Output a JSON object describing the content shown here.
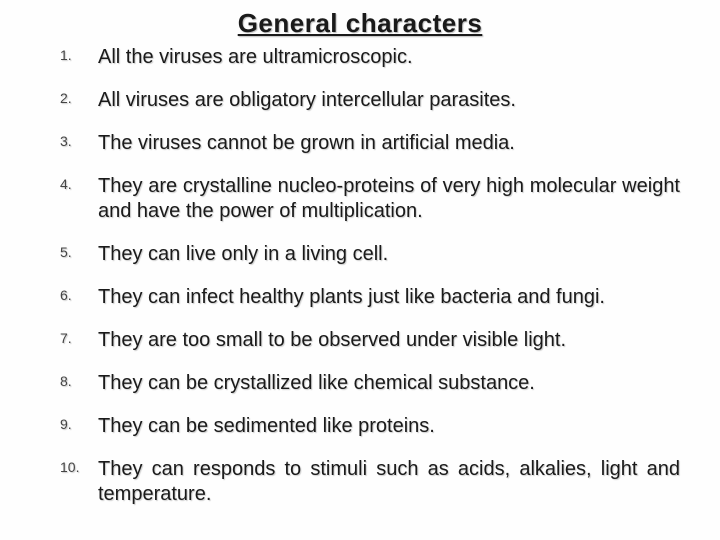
{
  "title": "General characters",
  "title_fontsize": 26,
  "title_color": "#1a1a1a",
  "title_underline": true,
  "background_color": "#fefefe",
  "text_color": "#1a1a1a",
  "number_color": "#444444",
  "body_fontsize": 20,
  "number_fontsize": 14,
  "shadow_color": "rgba(0,0,0,0.2)",
  "items": [
    {
      "text": "All the viruses are ultramicroscopic.",
      "justify": false
    },
    {
      "text": "All viruses are obligatory intercellular parasites.",
      "justify": false
    },
    {
      "text": "The viruses cannot be grown in artificial media.",
      "justify": false
    },
    {
      "text": "They are crystalline nucleo-proteins of very high molecular weight and have the power of multiplication.",
      "justify": true
    },
    {
      "text": "They can live only in a living cell.",
      "justify": false
    },
    {
      "text": "They can infect healthy plants just like bacteria and fungi.",
      "justify": true
    },
    {
      "text": "They are too small to be observed under visible light.",
      "justify": false
    },
    {
      "text": "They can be crystallized like chemical substance.",
      "justify": false
    },
    {
      "text": "They can be sedimented like proteins.",
      "justify": false
    },
    {
      "text": "They can responds to stimuli such as acids, alkalies, light and temperature.",
      "justify": true
    }
  ]
}
